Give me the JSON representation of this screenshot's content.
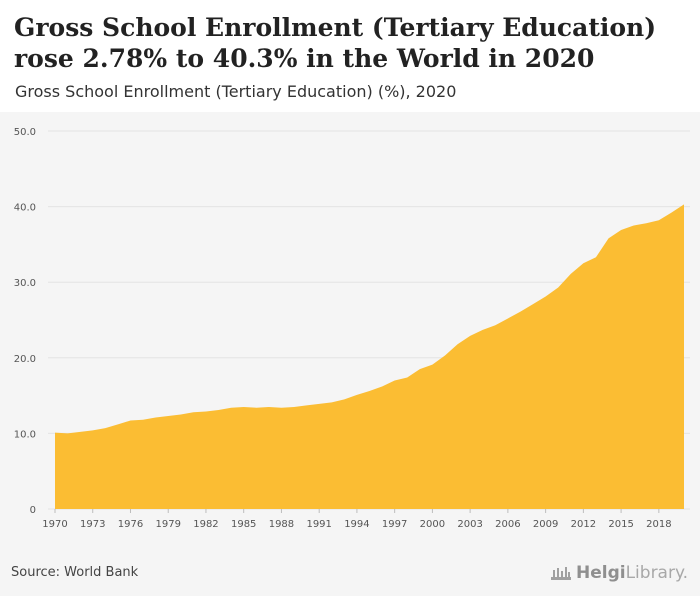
{
  "header": {
    "title": "Gross School Enrollment (Tertiary Education) rose 2.78% to 40.3% in the World in 2020",
    "subtitle": "Gross School Enrollment (Tertiary Education) (%), 2020"
  },
  "footer": {
    "source": "Source: World Bank",
    "brand_bold": "Helgi",
    "brand_light": "Library."
  },
  "colors": {
    "area_fill": "#fbbd33",
    "chart_background": "#f5f5f5",
    "gridline": "#e3e3e3",
    "tick_text": "#555555"
  },
  "chart_data": {
    "type": "area",
    "title": "Gross School Enrollment (Tertiary Education) (%), 2020",
    "xlabel": "",
    "ylabel": "",
    "x": [
      1970,
      1971,
      1972,
      1973,
      1974,
      1975,
      1976,
      1977,
      1978,
      1979,
      1980,
      1981,
      1982,
      1983,
      1984,
      1985,
      1986,
      1987,
      1988,
      1989,
      1990,
      1991,
      1992,
      1993,
      1994,
      1995,
      1996,
      1997,
      1998,
      1999,
      2000,
      2001,
      2002,
      2003,
      2004,
      2005,
      2006,
      2007,
      2008,
      2009,
      2010,
      2011,
      2012,
      2013,
      2014,
      2015,
      2016,
      2017,
      2018,
      2019,
      2020
    ],
    "series": [
      {
        "values": [
          10.1,
          10.0,
          10.2,
          10.4,
          10.7,
          11.2,
          11.7,
          11.8,
          12.1,
          12.3,
          12.5,
          12.8,
          12.9,
          13.1,
          13.4,
          13.5,
          13.4,
          13.5,
          13.4,
          13.5,
          13.7,
          13.9,
          14.1,
          14.5,
          15.1,
          15.6,
          16.2,
          17.0,
          17.4,
          18.5,
          19.1,
          20.3,
          21.8,
          22.9,
          23.7,
          24.3,
          25.2,
          26.1,
          27.1,
          28.1,
          29.3,
          31.1,
          32.5,
          33.3,
          35.8,
          36.9,
          37.5,
          37.8,
          38.2,
          39.2,
          40.3
        ]
      }
    ],
    "ylim": [
      0,
      50
    ],
    "yticks": [
      0,
      10,
      20,
      30,
      40,
      50
    ],
    "ytick_labels": [
      "0",
      "10.0",
      "20.0",
      "30.0",
      "40.0",
      "50.0"
    ],
    "xticks": [
      1970,
      1973,
      1976,
      1979,
      1982,
      1985,
      1988,
      1991,
      1994,
      1997,
      2000,
      2003,
      2006,
      2009,
      2012,
      2015,
      2018
    ],
    "grid": true,
    "legend": "none"
  }
}
